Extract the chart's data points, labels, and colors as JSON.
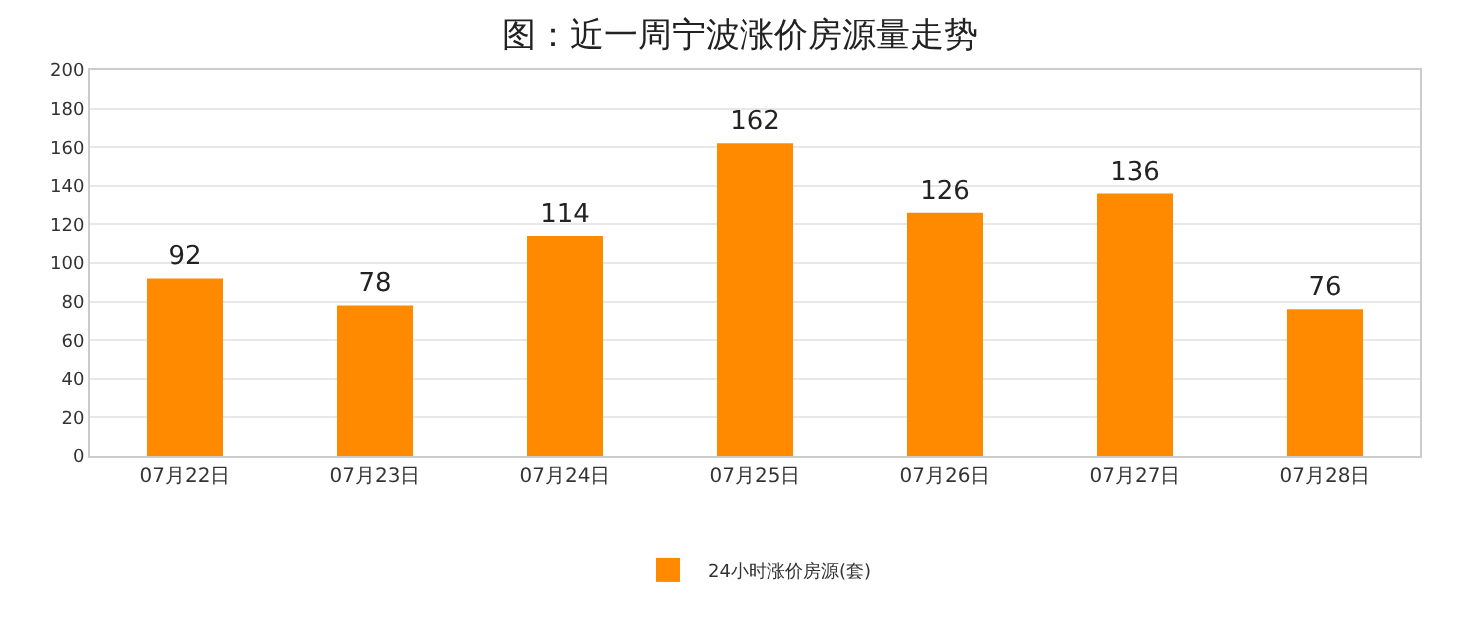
{
  "chart_data": {
    "type": "bar",
    "title": "图：近一周宁波涨价房源量走势",
    "categories": [
      "07月22日",
      "07月23日",
      "07月24日",
      "07月25日",
      "07月26日",
      "07月27日",
      "07月28日"
    ],
    "series": [
      {
        "name": "24小时涨价房源(套)",
        "color": "#ff8a00",
        "values": [
          92,
          78,
          114,
          162,
          126,
          136,
          76
        ]
      }
    ],
    "ylim": [
      0,
      200
    ],
    "yticks": [
      0,
      20,
      40,
      60,
      80,
      100,
      120,
      140,
      160,
      180,
      200
    ],
    "grid": "y",
    "legend": "bottom",
    "data_labels": true
  }
}
